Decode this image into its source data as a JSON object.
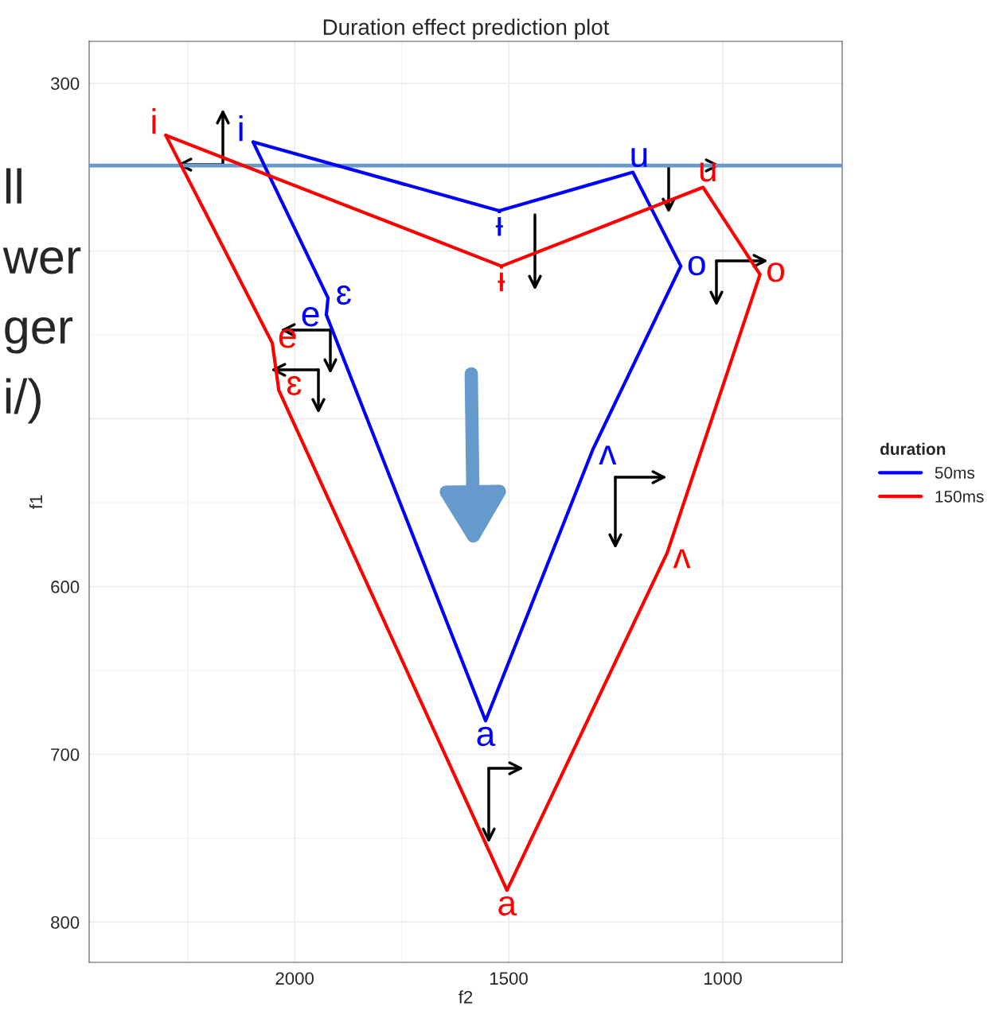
{
  "chart_data": {
    "type": "line",
    "title": "Duration effect prediction plot",
    "xlabel": "f2",
    "ylabel": "f1",
    "legend_title": "duration",
    "series": [
      {
        "name": "50ms",
        "color": "#0000ff",
        "x": [
          2097,
          1922,
          1926,
          1554,
          1303,
          1098,
          1210,
          1522
        ],
        "values": [
          335,
          428,
          438,
          680,
          518,
          409,
          353,
          376
        ],
        "value_labels": [
          "i",
          "ɛ",
          "e",
          "a",
          "ʌ",
          "o",
          "u",
          "ɨ"
        ]
      },
      {
        "name": "150ms",
        "color": "#ff0000",
        "x": [
          2301,
          2052,
          2037,
          1504,
          1130,
          913,
          1046,
          1517
        ],
        "values": [
          331,
          455,
          483,
          781,
          580,
          414,
          362,
          409
        ],
        "value_labels": [
          "i",
          "e",
          "ɛ",
          "a",
          "ʌ",
          "o",
          "u",
          "ɨ"
        ]
      },
      {
        "color": "#0000ff",
        "x": [
          1522,
          2097
        ],
        "values": [
          376,
          335
        ]
      },
      {
        "color": "#ff0000",
        "x": [
          1517,
          2301
        ],
        "values": [
          409,
          331
        ]
      }
    ],
    "xlim": [
      2480,
      721
    ],
    "xticks": [
      2000,
      1500,
      1000
    ],
    "ylim": [
      824,
      275
    ],
    "yticks": [
      300,
      {
        "value": 400,
        "label": null
      },
      {
        "value": 500,
        "label": null
      },
      600,
      700,
      800
    ],
    "ref_lines": [
      {
        "axis": "y",
        "value": 349,
        "color": "#6699cc"
      }
    ],
    "annotations": [
      "ll",
      "wer",
      "ger",
      "i/)"
    ],
    "grid": true,
    "legend": "right",
    "marker": "none",
    "line_style": "solid"
  }
}
